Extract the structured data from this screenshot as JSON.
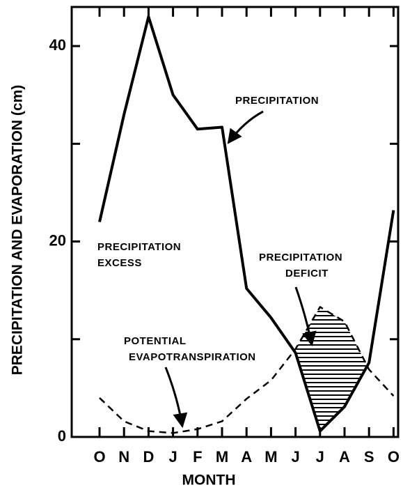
{
  "chart_data": {
    "type": "line",
    "y_label": "PRECIPITATION AND EVAPORATION (cm)",
    "x_label": "MONTH",
    "categories": [
      "O",
      "N",
      "D",
      "J",
      "F",
      "M",
      "A",
      "M",
      "J",
      "J",
      "A",
      "S",
      "O"
    ],
    "ylim": [
      0,
      44
    ],
    "yticks": [
      0,
      20,
      40
    ],
    "minor_yticks": [
      10,
      30
    ],
    "series": [
      {
        "name": "PRECIPITATION",
        "color": "#000000",
        "dash": false,
        "values": [
          22,
          33,
          43,
          35,
          31.5,
          31.7,
          15.2,
          12.2,
          8.6,
          0.6,
          3.1,
          7.6,
          23.2
        ]
      },
      {
        "color": "#000000",
        "dash": true,
        "values": [
          4,
          1.6,
          0.6,
          0.4,
          0.8,
          1.6,
          3.9,
          5.8,
          9,
          13.3,
          11.8,
          6.9,
          4.2
        ]
      }
    ],
    "annotations": [
      {
        "lines": [
          "PRECIPITATION",
          "EXCESS"
        ]
      },
      {
        "lines": [
          "PRECIPITATION",
          "DEFICIT"
        ]
      },
      {
        "lines": [
          "POTENTIAL",
          "EVAPOTRANSPIRATION"
        ]
      }
    ]
  }
}
